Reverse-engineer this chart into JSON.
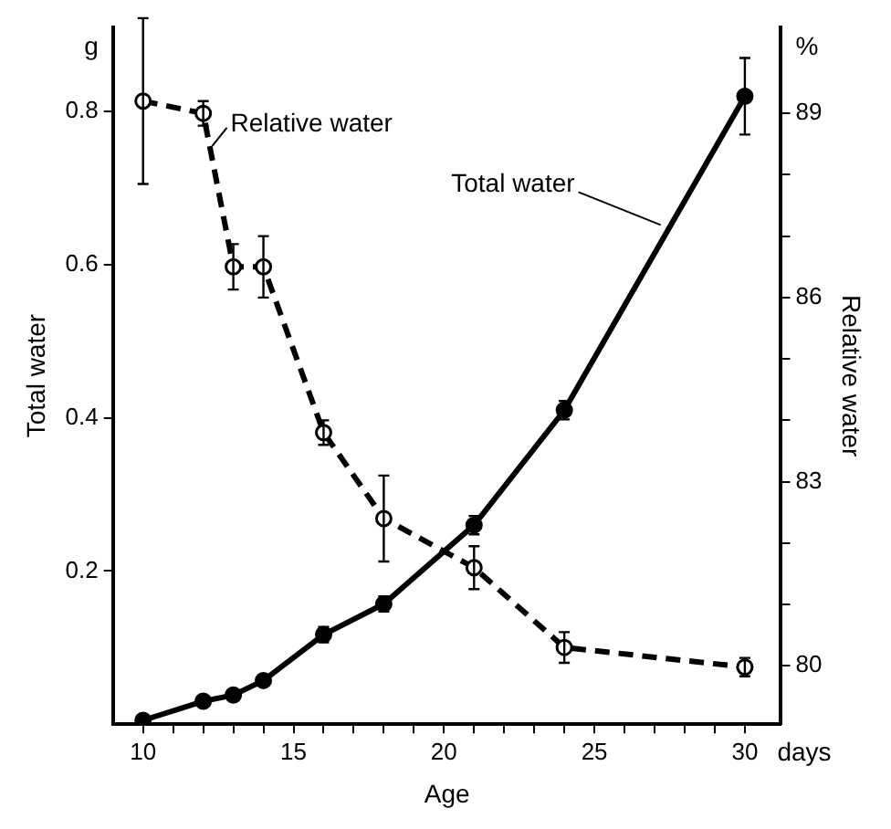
{
  "chart_data": {
    "type": "line",
    "xlabel": "Age",
    "ylabel": "Total water",
    "y2label": "Relative water",
    "x": [
      10,
      12,
      13,
      14,
      16,
      18,
      21,
      24,
      30
    ],
    "series": [
      {
        "color": "#000000",
        "line_style": "solid",
        "values": [
          0.005,
          0.03,
          0.038,
          0.057,
          0.117,
          0.157,
          0.26,
          0.41,
          0.82
        ],
        "errors": [
          null,
          null,
          null,
          null,
          0.01,
          0.01,
          0.012,
          0.012,
          0.05
        ]
      },
      {
        "color": "#000000",
        "line_style": "dashed",
        "axis": "y2",
        "values": [
          89.2,
          89.0,
          86.5,
          86.5,
          83.8,
          82.4,
          81.6,
          80.3,
          79.98
        ],
        "errors": [
          1.35,
          0.2,
          0.37,
          0.5,
          0.2,
          0.7,
          0.35,
          0.25,
          0.15
        ]
      }
    ],
    "xlim": [
      9,
      31.2
    ],
    "xticks": [
      10,
      {
        "value": 11,
        "label": null
      },
      {
        "value": 12,
        "label": null
      },
      {
        "value": 13,
        "label": null
      },
      {
        "value": 14,
        "label": null
      },
      15,
      {
        "value": 16,
        "label": null
      },
      {
        "value": 17,
        "label": null
      },
      {
        "value": 18,
        "label": null
      },
      {
        "value": 19,
        "label": null
      },
      20,
      {
        "value": 21,
        "label": null
      },
      {
        "value": 22,
        "label": null
      },
      {
        "value": 23,
        "label": null
      },
      {
        "value": 24,
        "label": null
      },
      25,
      {
        "value": 26,
        "label": null
      },
      {
        "value": 27,
        "label": null
      },
      {
        "value": 28,
        "label": null
      },
      {
        "value": 29,
        "label": null
      },
      30
    ],
    "ylim": [
      0,
      0.91
    ],
    "yticks": [
      0.2,
      0.4,
      0.6,
      0.8
    ],
    "y2lim": [
      79.05,
      90.4
    ],
    "y2ticks": [
      80,
      {
        "value": 81,
        "label": null
      },
      {
        "value": 82,
        "label": null
      },
      83,
      {
        "value": 84,
        "label": null
      },
      {
        "value": 85,
        "label": null
      },
      86,
      {
        "value": 87,
        "label": null
      },
      {
        "value": 88,
        "label": null
      },
      89
    ],
    "marker": "circle",
    "grid": false,
    "legend": false,
    "annotations": [
      "g",
      "%",
      "days",
      {
        "text": "Relative water",
        "x": 12.3,
        "y": 0.755
      },
      {
        "text": "Total water",
        "x": 27.2,
        "y": 0.652
      }
    ]
  }
}
